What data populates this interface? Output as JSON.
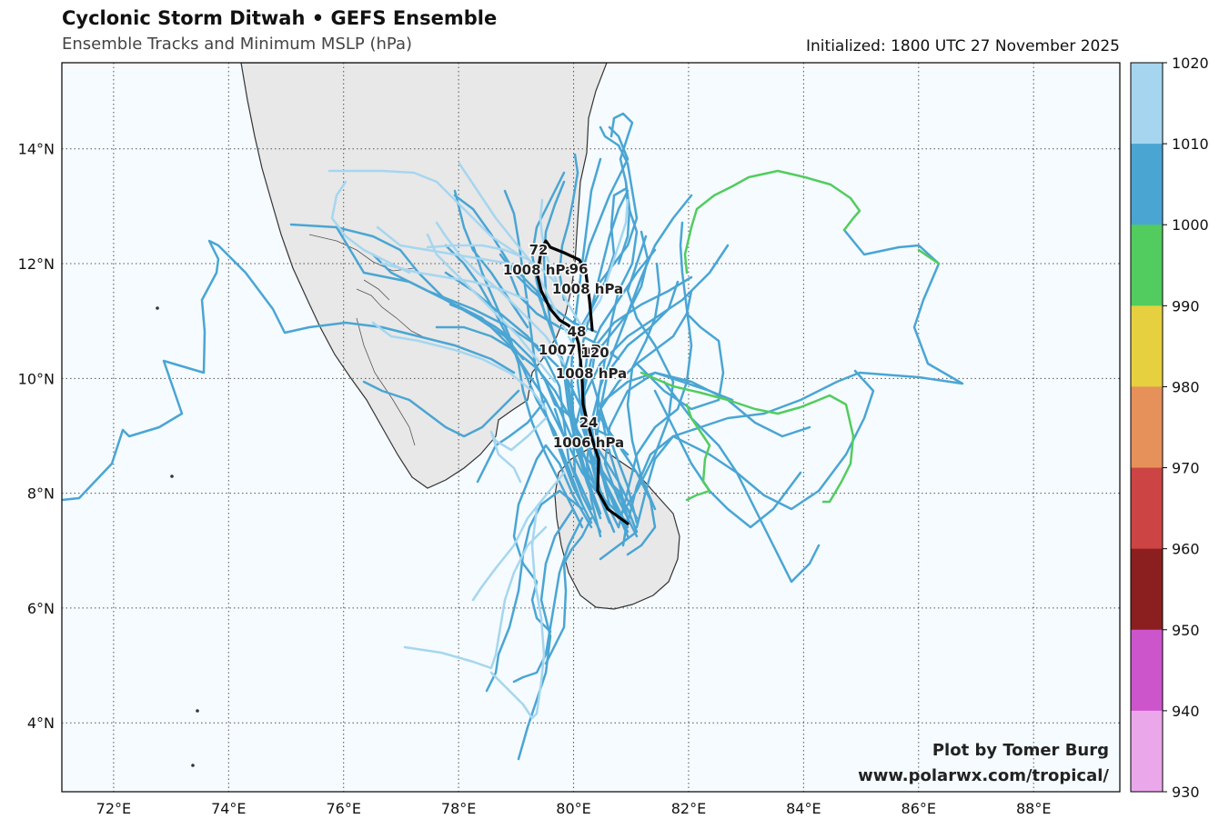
{
  "header": {
    "title": "Cyclonic Storm Ditwah • GEFS Ensemble",
    "subtitle": "Ensemble Tracks and Minimum MSLP (hPa)",
    "initialized": "Initialized: 1800 UTC 27 November 2025"
  },
  "map": {
    "lon_range": [
      71.1,
      89.5
    ],
    "lat_range": [
      2.8,
      15.5
    ],
    "lon_ticks": [
      "72°E",
      "74°E",
      "76°E",
      "78°E",
      "80°E",
      "82°E",
      "84°E",
      "86°E",
      "88°E"
    ],
    "lat_ticks": [
      "4°N",
      "6°N",
      "8°N",
      "10°N",
      "12°N",
      "14°N"
    ],
    "gridlines": "dotted",
    "ocean_color": "#f5fbff",
    "land_color": "#e8e8e8"
  },
  "colorbar": {
    "ticks": [
      "1020",
      "1010",
      "1000",
      "990",
      "980",
      "970",
      "960",
      "950",
      "940",
      "930"
    ],
    "bins": [
      {
        "range": "1010–1020",
        "color": "#a6d6ef"
      },
      {
        "range": "1000–1010",
        "color": "#4aa5d3"
      },
      {
        "range": "990–1000",
        "color": "#52cc5e"
      },
      {
        "range": "980–990",
        "color": "#e6d03f"
      },
      {
        "range": "970–980",
        "color": "#e6905a"
      },
      {
        "range": "960–970",
        "color": "#cc4444"
      },
      {
        "range": "950–960",
        "color": "#8b1f1f"
      },
      {
        "range": "940–950",
        "color": "#cc55cc"
      },
      {
        "range": "930–940",
        "color": "#eaa8ea"
      }
    ]
  },
  "ensemble_mean": {
    "labels": [
      {
        "hour": "24",
        "mslp": "1006 hPa"
      },
      {
        "hour": "48",
        "mslp": "1007 hPa"
      },
      {
        "hour": "72",
        "mslp": "1008 hPa"
      },
      {
        "hour": "96",
        "mslp": "1008 hPa"
      },
      {
        "hour": "120",
        "mslp": "1008 hPa"
      }
    ]
  },
  "credit": {
    "line1": "Plot by Tomer Burg",
    "line2": "www.polarwx.com/tropical/"
  }
}
